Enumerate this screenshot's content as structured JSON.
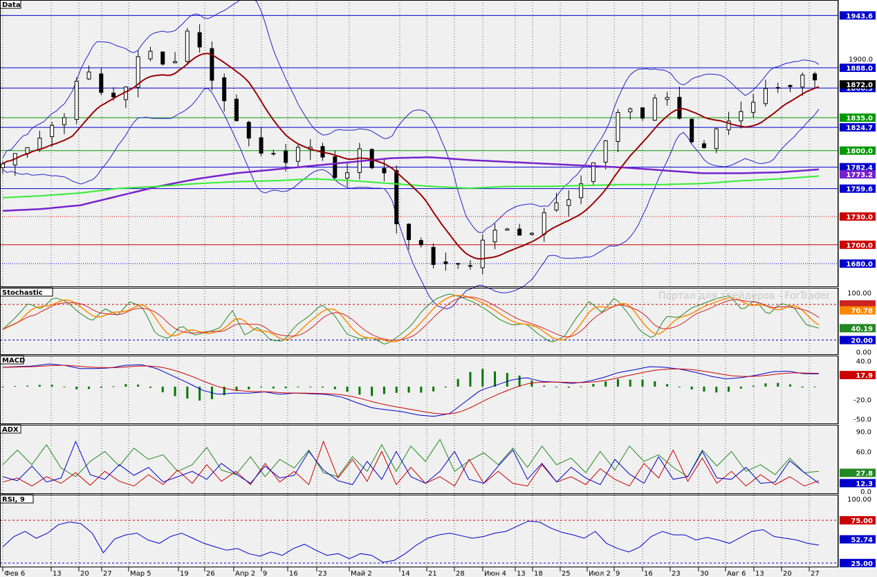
{
  "watermark": "Портал для трейдеров - ForTrader",
  "colors": {
    "bg": "#f0f0f0",
    "grid": "#000000",
    "frame": "#000000",
    "blue_line": "#0000cc",
    "red_line": "#cc0000",
    "green_line": "#009900",
    "ma_red": "#990000",
    "ma_green": "#33ee33",
    "ma_purple": "#7722cc",
    "bb": "#2222cc",
    "stoch_k": "#228822",
    "stoch_d1": "#ff8800",
    "stoch_d2": "#cc2222",
    "macd_main": "#0000cc",
    "macd_signal": "#cc0000",
    "macd_hist": "#007700",
    "adx_plus": "#228822",
    "adx_minus": "#cc0000",
    "adx": "#0000cc",
    "rsi": "#0000cc"
  },
  "chart_data": [
    {
      "type": "candlestick",
      "panel_title": "Data",
      "x_tick_labels": [
        "Фев 6",
        "13",
        "20",
        "27",
        "Мар 5",
        "19",
        "26",
        "Апр 2",
        "9",
        "16",
        "23",
        "Май 2",
        "14",
        "21",
        "28",
        "Июн 4",
        "13",
        "18",
        "25",
        "Июл 2",
        "9",
        "16",
        "23",
        "30",
        "Авг 6",
        "13",
        "20",
        "27"
      ],
      "y_range": [
        1655,
        1960
      ],
      "right_axis_labels": [
        "1943.6",
        "1900.0",
        "1888.0",
        "1872.0",
        "1866.5",
        "1835.0",
        "1824.7",
        "1800.0",
        "1782.4",
        "1773.2",
        "1759.6",
        "1730.0",
        "1700.0",
        "1680.0"
      ],
      "horizontal_levels": [
        {
          "value": 1943.6,
          "label": "1943.6",
          "style": "solid-blue"
        },
        {
          "value": 1888.0,
          "label": "1888.0",
          "style": "solid-blue"
        },
        {
          "value": 1866.5,
          "label": "1866.5",
          "style": "solid-blue"
        },
        {
          "value": 1835.0,
          "label": "1835.0",
          "style": "solid-green"
        },
        {
          "value": 1824.7,
          "label": "1824.7",
          "style": "solid-blue"
        },
        {
          "value": 1800.0,
          "label": "1800.0",
          "style": "solid-green"
        },
        {
          "value": 1782.4,
          "label": "1782.4",
          "style": "solid-blue"
        },
        {
          "value": 1759.6,
          "label": "1759.6",
          "style": "solid-blue"
        },
        {
          "value": 1730.0,
          "label": "1730.0",
          "style": "dotted-red"
        },
        {
          "value": 1700.0,
          "label": "1700.0",
          "style": "solid-red"
        },
        {
          "value": 1680.0,
          "label": "1680.0",
          "style": "dotted-blue"
        }
      ],
      "last_price": "1872.0",
      "ma200_value": "1773.2",
      "close_anchors": [
        1786,
        1800,
        1808,
        1815,
        1827,
        1840,
        1882,
        1890,
        1856,
        1862,
        1868,
        1912,
        1900,
        1880,
        1917,
        1930,
        1882,
        1860,
        1842,
        1814,
        1796,
        1801,
        1786,
        1807,
        1800,
        1792,
        1776,
        1779,
        1800,
        1786,
        1776,
        1715,
        1704,
        1694,
        1679,
        1678,
        1676,
        1684,
        1712,
        1718,
        1716,
        1710,
        1722,
        1746,
        1752,
        1754,
        1778,
        1800,
        1843,
        1850,
        1832,
        1850,
        1863,
        1836,
        1810,
        1804,
        1821,
        1827,
        1844,
        1852,
        1866,
        1868,
        1874,
        1876,
        1872
      ]
    },
    {
      "type": "line",
      "panel_title": "Stochastic",
      "right_axis_labels": [
        "100.00",
        "70.78",
        "40.19",
        "20.00",
        "0.00"
      ],
      "levels": [
        20,
        80
      ],
      "y_range": [
        -5,
        108
      ],
      "k_anchors": [
        38,
        58,
        82,
        72,
        92,
        85,
        66,
        52,
        73,
        62,
        85,
        74,
        30,
        22,
        45,
        28,
        33,
        40,
        70,
        28,
        42,
        20,
        18,
        45,
        60,
        80,
        62,
        30,
        22,
        24,
        12,
        26,
        44,
        72,
        90,
        98,
        92,
        83,
        70,
        54,
        45,
        48,
        30,
        16,
        25,
        58,
        85,
        66,
        92,
        66,
        35,
        22,
        60,
        58,
        74,
        82,
        90,
        95,
        70,
        88,
        62,
        82,
        76,
        46,
        40
      ]
    },
    {
      "type": "line",
      "panel_title": "MACD",
      "right_axis_labels": [
        "40.0",
        "17.9",
        "-20.0",
        "-50.0"
      ],
      "y_range": [
        -58,
        48
      ],
      "main_anchors": [
        30,
        31,
        32,
        35,
        33,
        28,
        28,
        29,
        33,
        34,
        28,
        17,
        6,
        -6,
        -12,
        -10,
        -10,
        -8,
        -12,
        -10,
        -11,
        -12,
        -16,
        -25,
        -33,
        -36,
        -39,
        -44,
        -46,
        -42,
        -24,
        -6,
        2,
        10,
        14,
        8,
        7,
        5,
        8,
        14,
        22,
        26,
        31,
        30,
        27,
        22,
        16,
        12,
        14,
        18,
        23,
        24,
        20,
        20
      ]
    },
    {
      "type": "line",
      "panel_title": "ADX",
      "right_axis_labels": [
        "90.0",
        "60.0",
        "27.8",
        "12.3",
        "0.0"
      ],
      "y_range": [
        -4,
        100
      ],
      "plus_anchors": [
        40,
        62,
        40,
        70,
        35,
        22,
        45,
        60,
        38,
        65,
        48,
        55,
        30,
        40,
        66,
        32,
        25,
        52,
        22,
        48,
        35,
        62,
        28,
        22,
        52,
        30,
        70,
        30,
        68,
        45,
        78,
        30,
        46,
        58,
        40,
        65,
        36,
        68,
        40,
        50,
        28,
        60,
        32,
        68,
        45,
        55,
        36,
        22,
        62,
        38,
        60,
        30,
        40,
        25,
        50,
        28,
        30
      ],
      "minus_anchors": [
        14,
        20,
        8,
        22,
        12,
        28,
        9,
        30,
        15,
        8,
        25,
        10,
        32,
        12,
        40,
        15,
        30,
        10,
        42,
        14,
        30,
        10,
        75,
        20,
        48,
        15,
        60,
        10,
        36,
        12,
        22,
        8,
        48,
        12,
        30,
        12,
        8,
        40,
        14,
        22,
        10,
        34,
        18,
        8,
        42,
        20,
        62,
        15,
        50,
        12,
        30,
        8,
        25,
        10,
        22,
        8,
        16
      ],
      "adx_anchors": [
        22,
        16,
        38,
        14,
        20,
        75,
        25,
        18,
        40,
        24,
        36,
        14,
        22,
        30,
        18,
        42,
        26,
        12,
        38,
        20,
        24,
        60,
        32,
        16,
        10,
        45,
        18,
        60,
        22,
        12,
        30,
        60,
        18,
        12,
        38,
        62,
        18,
        42,
        14,
        36,
        20,
        10,
        48,
        26,
        12,
        52,
        18,
        22,
        60,
        20,
        18,
        36,
        12,
        14,
        46,
        28,
        12
      ]
    },
    {
      "type": "line",
      "panel_title": "RSI, 9",
      "right_axis_labels": [
        "100.00",
        "75.00",
        "52.74",
        "25.00"
      ],
      "levels": [
        25,
        75
      ],
      "y_range": [
        20,
        105
      ],
      "rsi_anchors": [
        44,
        56,
        62,
        54,
        60,
        70,
        73,
        71,
        60,
        37,
        53,
        58,
        60,
        52,
        48,
        56,
        60,
        54,
        48,
        44,
        40,
        42,
        36,
        33,
        38,
        34,
        42,
        47,
        40,
        34,
        36,
        30,
        36,
        34,
        26,
        28,
        36,
        46,
        54,
        58,
        60,
        57,
        54,
        56,
        60,
        62,
        68,
        74,
        73,
        66,
        61,
        58,
        54,
        62,
        48,
        42,
        38,
        44,
        56,
        62,
        58,
        58,
        52,
        55,
        52,
        48,
        55,
        62,
        64,
        56,
        54,
        52,
        48,
        46
      ]
    }
  ]
}
